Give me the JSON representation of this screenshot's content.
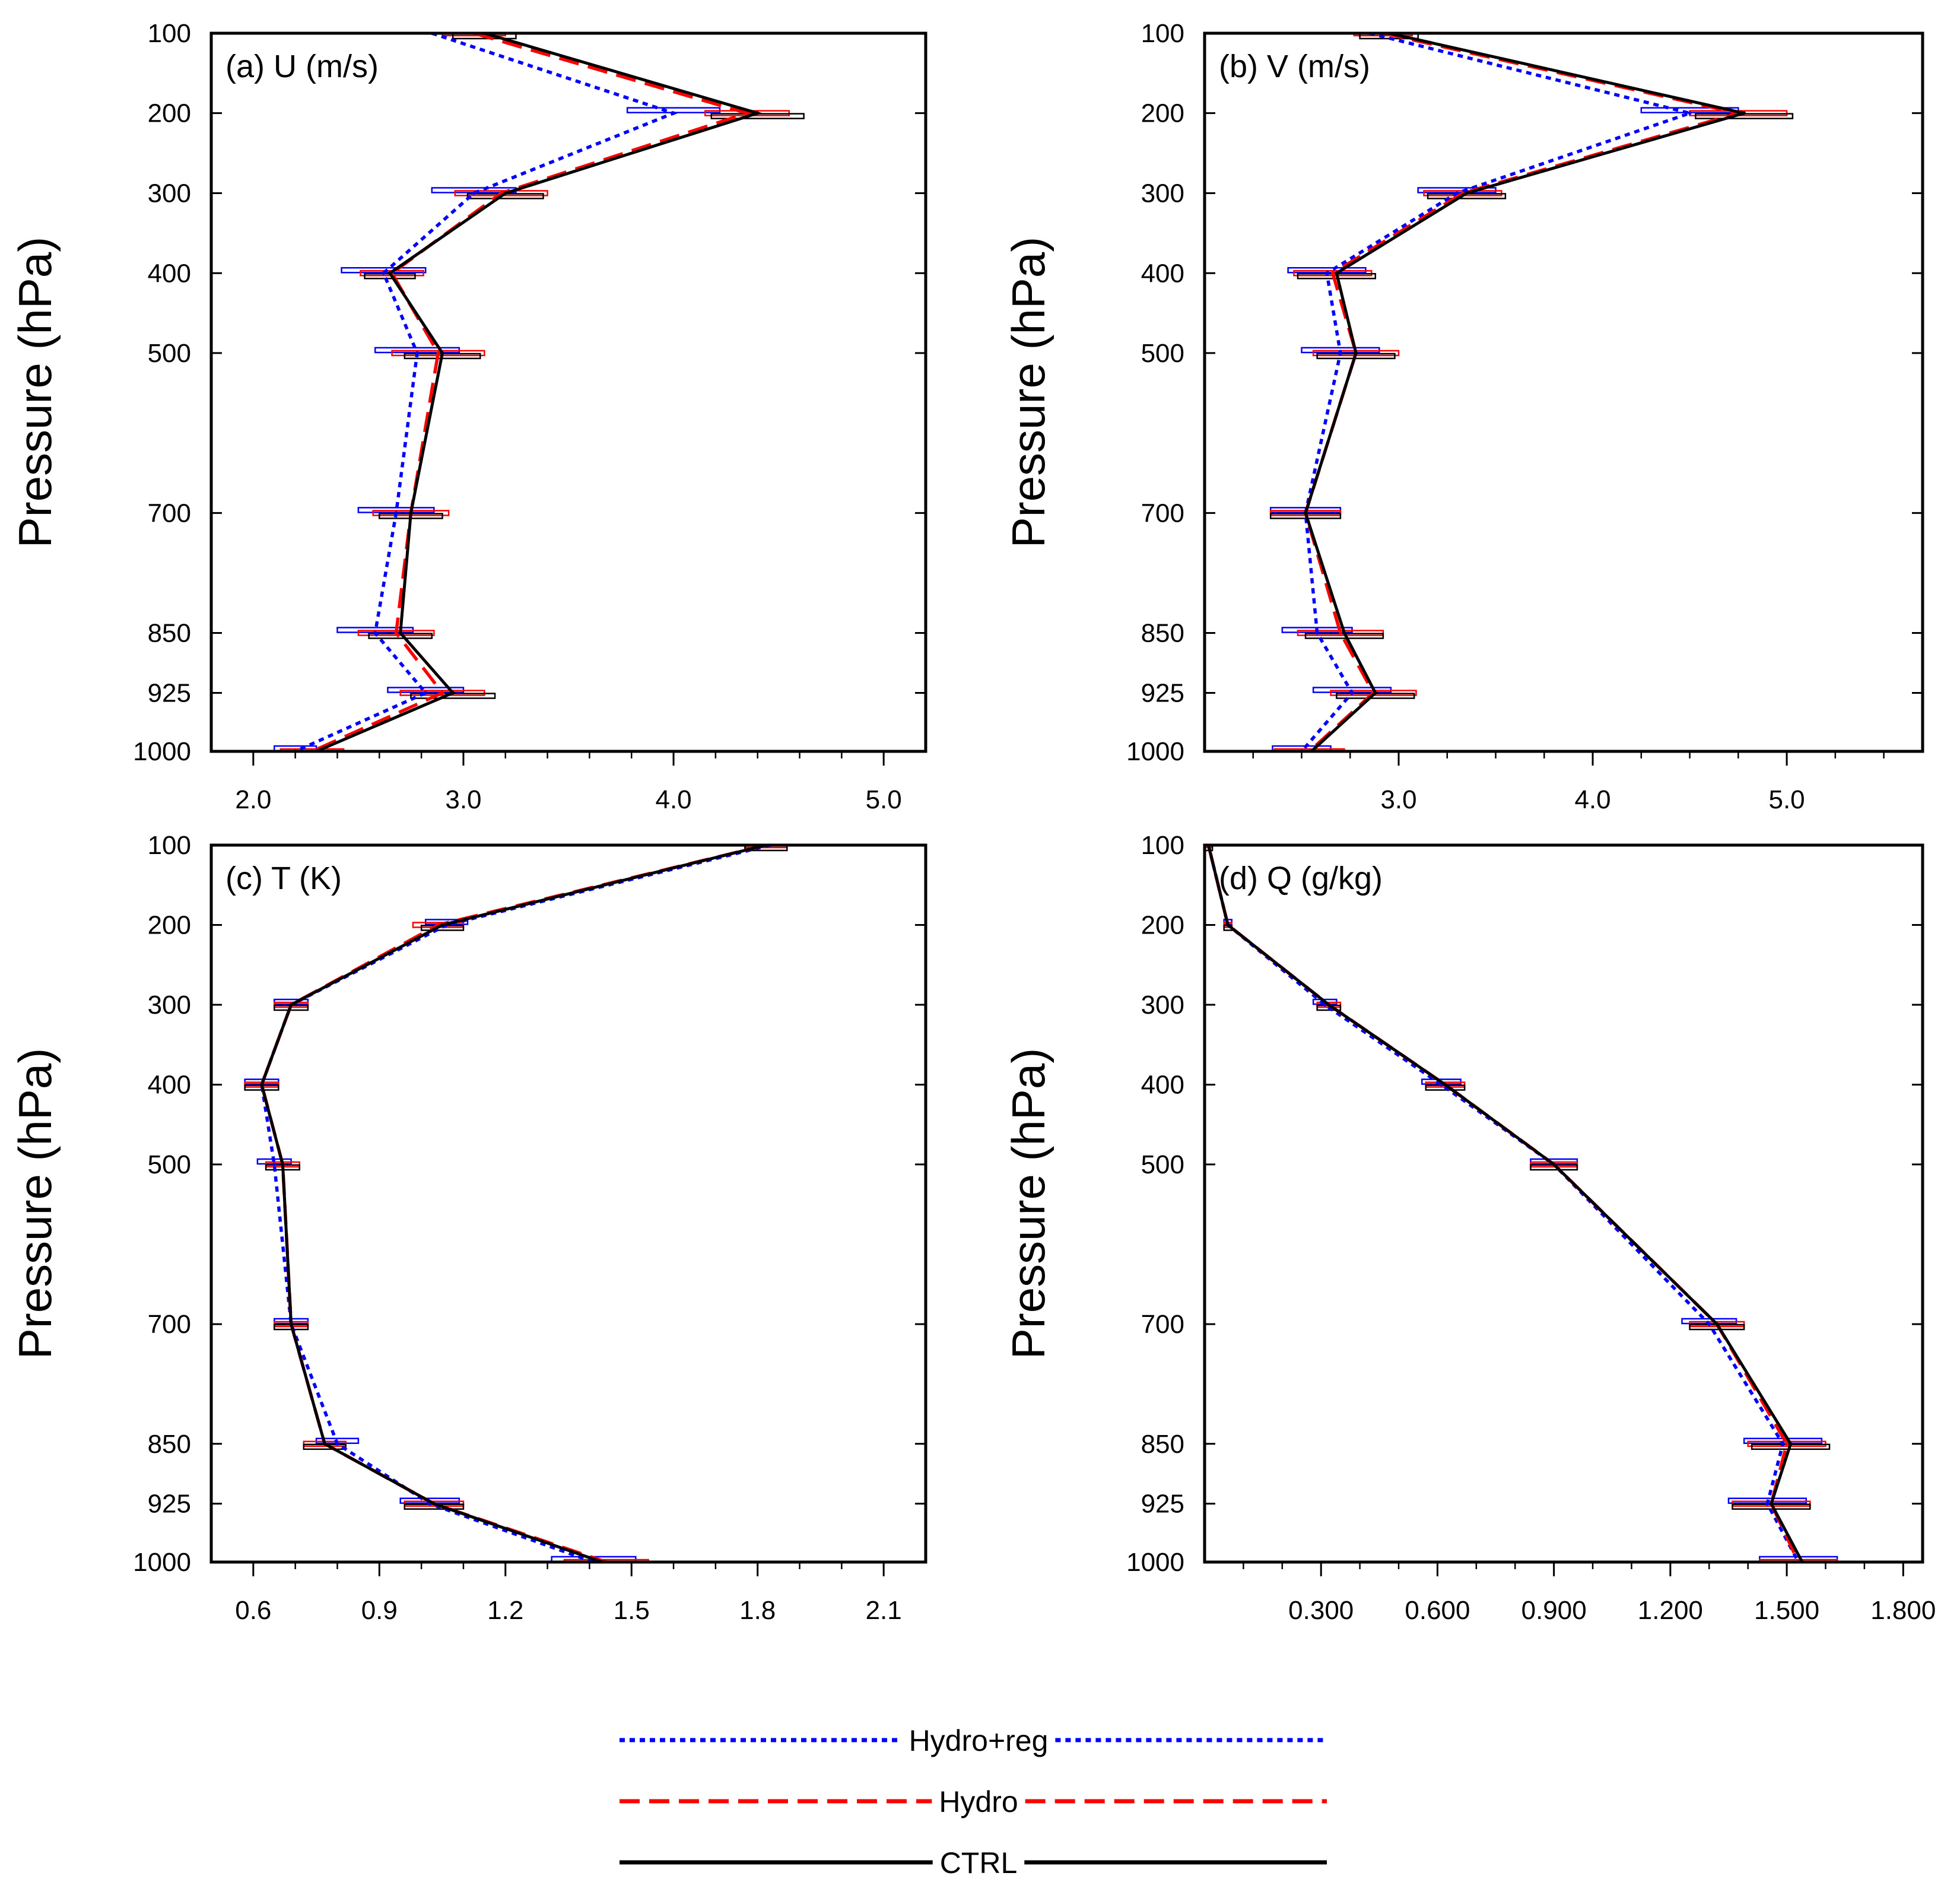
{
  "figure": {
    "legend": [
      {
        "name": "Hydro+reg",
        "color": "#0000ff",
        "dash": "dot"
      },
      {
        "name": "Hydro",
        "color": "#ff0000",
        "dash": "dash"
      },
      {
        "name": "CTRL",
        "color": "#000000",
        "dash": "solid"
      }
    ]
  },
  "chart_data": [
    {
      "type": "line",
      "title": "(a) U (m/s)",
      "ylabel": "Pressure (hPa)",
      "xlabel": "",
      "y_reversed": true,
      "levels": [
        100,
        200,
        300,
        400,
        500,
        700,
        850,
        925,
        1000
      ],
      "y_tick_labels": [
        "100",
        "200",
        "300",
        "400",
        "500",
        "700",
        "850",
        "925",
        "1000"
      ],
      "xlim": [
        1.8,
        5.2
      ],
      "x_ticks": [
        2.0,
        3.0,
        4.0,
        5.0
      ],
      "x_tick_labels": [
        "2.0",
        "3.0",
        "4.0",
        "5.0"
      ],
      "x_minor_step": 0.2,
      "series": [
        {
          "name": "CTRL",
          "color": "#000000",
          "dash": "solid",
          "values": [
            3.1,
            4.4,
            3.2,
            2.65,
            2.9,
            2.75,
            2.7,
            2.95,
            2.3
          ],
          "err": [
            0.15,
            0.22,
            0.18,
            0.12,
            0.18,
            0.15,
            0.15,
            0.2,
            0.15
          ]
        },
        {
          "name": "Hydro",
          "color": "#ff0000",
          "dash": "dash",
          "values": [
            3.05,
            4.35,
            3.18,
            2.66,
            2.88,
            2.75,
            2.68,
            2.9,
            2.28
          ],
          "err": [
            0.15,
            0.2,
            0.22,
            0.15,
            0.22,
            0.18,
            0.18,
            0.2,
            0.15
          ]
        },
        {
          "name": "Hydro+reg",
          "color": "#0000ff",
          "dash": "dot",
          "values": [
            2.85,
            4.0,
            3.05,
            2.62,
            2.78,
            2.68,
            2.58,
            2.82,
            2.2
          ],
          "err": [
            0.18,
            0.22,
            0.2,
            0.2,
            0.2,
            0.18,
            0.18,
            0.18,
            0.1
          ]
        }
      ]
    },
    {
      "type": "line",
      "title": "(b) V (m/s)",
      "ylabel": "Pressure (hPa)",
      "xlabel": "",
      "y_reversed": true,
      "levels": [
        100,
        200,
        300,
        400,
        500,
        700,
        850,
        925,
        1000
      ],
      "y_tick_labels": [
        "100",
        "200",
        "300",
        "400",
        "500",
        "700",
        "850",
        "925",
        "1000"
      ],
      "xlim": [
        2.0,
        5.7
      ],
      "x_ticks": [
        3.0,
        4.0,
        5.0
      ],
      "x_tick_labels": [
        "3.0",
        "4.0",
        "5.0"
      ],
      "x_minor_step": 0.25,
      "series": [
        {
          "name": "CTRL",
          "color": "#000000",
          "dash": "solid",
          "values": [
            2.95,
            4.78,
            3.35,
            2.68,
            2.78,
            2.52,
            2.72,
            2.88,
            2.55
          ],
          "err": [
            0.15,
            0.25,
            0.2,
            0.2,
            0.2,
            0.18,
            0.2,
            0.2,
            0.18
          ]
        },
        {
          "name": "Hydro",
          "color": "#ff0000",
          "dash": "dash",
          "values": [
            2.92,
            4.75,
            3.33,
            2.66,
            2.78,
            2.52,
            2.7,
            2.87,
            2.54
          ],
          "err": [
            0.15,
            0.25,
            0.2,
            0.2,
            0.22,
            0.18,
            0.22,
            0.22,
            0.18
          ]
        },
        {
          "name": "Hydro+reg",
          "color": "#0000ff",
          "dash": "dot",
          "values": [
            2.85,
            4.5,
            3.3,
            2.63,
            2.7,
            2.52,
            2.58,
            2.76,
            2.5
          ],
          "err": [
            0.18,
            0.25,
            0.2,
            0.2,
            0.2,
            0.18,
            0.18,
            0.2,
            0.15
          ]
        }
      ]
    },
    {
      "type": "line",
      "title": "(c) T (K)",
      "ylabel": "Pressure (hPa)",
      "xlabel": "",
      "y_reversed": true,
      "levels": [
        100,
        200,
        300,
        400,
        500,
        700,
        850,
        925,
        1000
      ],
      "y_tick_labels": [
        "100",
        "200",
        "300",
        "400",
        "500",
        "700",
        "850",
        "925",
        "1000"
      ],
      "xlim": [
        0.5,
        2.2
      ],
      "x_ticks": [
        0.6,
        0.9,
        1.2,
        1.5,
        1.8,
        2.1
      ],
      "x_tick_labels": [
        "0.6",
        "0.9",
        "1.2",
        "1.5",
        "1.8",
        "2.1"
      ],
      "x_minor_step": 0.1,
      "series": [
        {
          "name": "CTRL",
          "color": "#000000",
          "dash": "solid",
          "values": [
            1.82,
            1.05,
            0.69,
            0.62,
            0.67,
            0.69,
            0.77,
            1.03,
            1.43
          ],
          "err": [
            0.05,
            0.05,
            0.04,
            0.04,
            0.04,
            0.04,
            0.05,
            0.07,
            0.1
          ]
        },
        {
          "name": "Hydro",
          "color": "#ff0000",
          "dash": "dash",
          "values": [
            1.82,
            1.04,
            0.69,
            0.62,
            0.67,
            0.69,
            0.77,
            1.03,
            1.44
          ],
          "err": [
            0.05,
            0.06,
            0.04,
            0.04,
            0.04,
            0.04,
            0.05,
            0.07,
            0.1
          ]
        },
        {
          "name": "Hydro+reg",
          "color": "#0000ff",
          "dash": "dot",
          "values": [
            1.83,
            1.06,
            0.69,
            0.62,
            0.65,
            0.69,
            0.8,
            1.02,
            1.41
          ],
          "err": [
            0.05,
            0.05,
            0.04,
            0.04,
            0.04,
            0.04,
            0.05,
            0.07,
            0.1
          ]
        }
      ]
    },
    {
      "type": "line",
      "title": "(d) Q (g/kg)",
      "ylabel": "Pressure (hPa)",
      "xlabel": "",
      "y_reversed": true,
      "levels": [
        100,
        200,
        300,
        400,
        500,
        700,
        850,
        925,
        1000
      ],
      "y_tick_labels": [
        "100",
        "200",
        "300",
        "400",
        "500",
        "700",
        "850",
        "925",
        "1000"
      ],
      "xlim": [
        0.0,
        1.85
      ],
      "x_ticks": [
        0.3,
        0.6,
        0.9,
        1.2,
        1.5,
        1.8
      ],
      "x_tick_labels": [
        "0.300",
        "0.600",
        "0.900",
        "1.200",
        "1.500",
        "1.800"
      ],
      "x_minor_step": 0.1,
      "series": [
        {
          "name": "CTRL",
          "color": "#000000",
          "dash": "solid",
          "values": [
            0.01,
            0.06,
            0.32,
            0.62,
            0.9,
            1.32,
            1.51,
            1.46,
            1.54
          ],
          "err": [
            0.01,
            0.01,
            0.03,
            0.05,
            0.06,
            0.07,
            0.1,
            0.1,
            0.1
          ]
        },
        {
          "name": "Hydro",
          "color": "#ff0000",
          "dash": "dash",
          "values": [
            0.01,
            0.06,
            0.32,
            0.62,
            0.9,
            1.32,
            1.5,
            1.46,
            1.53
          ],
          "err": [
            0.01,
            0.01,
            0.03,
            0.05,
            0.06,
            0.07,
            0.1,
            0.1,
            0.1
          ]
        },
        {
          "name": "Hydro+reg",
          "color": "#0000ff",
          "dash": "dot",
          "values": [
            0.01,
            0.06,
            0.31,
            0.61,
            0.9,
            1.3,
            1.49,
            1.45,
            1.53
          ],
          "err": [
            0.01,
            0.01,
            0.03,
            0.05,
            0.06,
            0.07,
            0.1,
            0.1,
            0.1
          ]
        }
      ]
    }
  ]
}
